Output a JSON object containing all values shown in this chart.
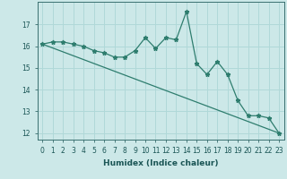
{
  "xlabel": "Humidex (Indice chaleur)",
  "x": [
    0,
    1,
    2,
    3,
    4,
    5,
    6,
    7,
    8,
    9,
    10,
    11,
    12,
    13,
    14,
    15,
    16,
    17,
    18,
    19,
    20,
    21,
    22,
    23
  ],
  "y_line": [
    16.1,
    16.2,
    16.2,
    16.1,
    16.0,
    15.8,
    15.7,
    15.5,
    15.5,
    15.8,
    16.4,
    15.9,
    16.4,
    16.3,
    17.6,
    15.2,
    14.7,
    15.3,
    14.7,
    13.5,
    12.8,
    12.8,
    12.7,
    12.0
  ],
  "y_trend_start": 16.1,
  "y_trend_end": 12.0,
  "line_color": "#2e7d6e",
  "bg_color": "#cce8e8",
  "grid_color": "#b0d8d8",
  "ylim_min": 11.7,
  "ylim_max": 18.05,
  "yticks": [
    12,
    13,
    14,
    15,
    16,
    17
  ],
  "xlim_min": -0.5,
  "xlim_max": 23.5,
  "tick_fontsize": 5.5,
  "xlabel_fontsize": 6.5
}
